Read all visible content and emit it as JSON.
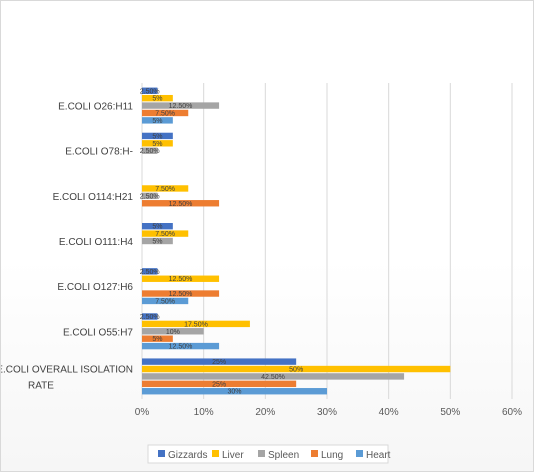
{
  "chart_data": {
    "type": "bar",
    "orientation": "horizontal",
    "title": "",
    "xlabel": "",
    "ylabel": "",
    "xlim": [
      0,
      60
    ],
    "x_ticks": [
      "0%",
      "10%",
      "20%",
      "30%",
      "40%",
      "50%",
      "60%"
    ],
    "grid": "vertical",
    "legend_position": "bottom",
    "categories": [
      "E.COLI OVERALL ISOLATION RATE",
      "E.COLI O55:H7",
      "E.COLI O127:H6",
      "E.COLI O111:H4",
      "E.COLI O114:H21",
      "E.COLI O78:H-",
      "E.COLI O26:H11"
    ],
    "series": [
      {
        "name": "Gizzards",
        "color": "#4472C4",
        "values": [
          25,
          2.5,
          2.5,
          5,
          0,
          5,
          2.5
        ],
        "labels": [
          "25%",
          "2.50%",
          "2.50%",
          "5%",
          "",
          "5%",
          "2.50%"
        ]
      },
      {
        "name": "Liver",
        "color": "#FFC000",
        "values": [
          50,
          17.5,
          12.5,
          7.5,
          7.5,
          5,
          5
        ],
        "labels": [
          "50%",
          "17.50%",
          "12.50%",
          "7.50%",
          "7.50%",
          "5%",
          "5%"
        ]
      },
      {
        "name": "Spleen",
        "color": "#A5A5A5",
        "values": [
          42.5,
          10,
          0,
          5,
          2.5,
          2.5,
          12.5
        ],
        "labels": [
          "42.50%",
          "10%",
          "",
          "5%",
          "2.50%",
          "2.50%",
          "12.50%"
        ]
      },
      {
        "name": "Lung",
        "color": "#ED7D31",
        "values": [
          25,
          5,
          12.5,
          0,
          12.5,
          0,
          7.5
        ],
        "labels": [
          "25%",
          "5%",
          "12.50%",
          "",
          "12.50%",
          "",
          "7.50%"
        ]
      },
      {
        "name": "Heart",
        "color": "#5B9BD5",
        "values": [
          30,
          12.5,
          7.5,
          0,
          0,
          0,
          5
        ],
        "labels": [
          "30%",
          "12.50%",
          "7.50%",
          "",
          "",
          "",
          "5%"
        ]
      }
    ]
  }
}
